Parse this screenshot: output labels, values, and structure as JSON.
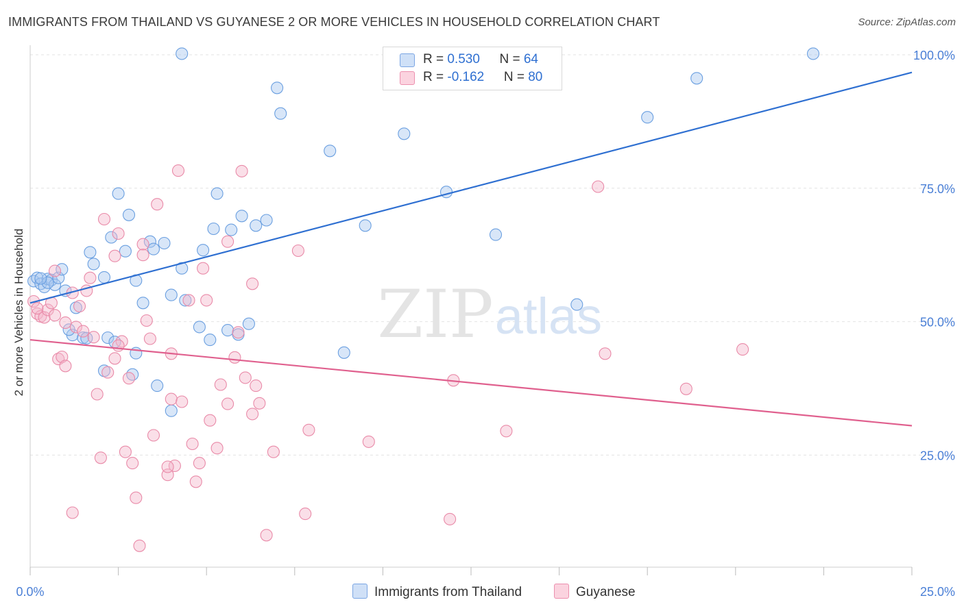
{
  "header": {
    "title": "IMMIGRANTS FROM THAILAND VS GUYANESE 2 OR MORE VEHICLES IN HOUSEHOLD CORRELATION CHART",
    "source": "Source: ZipAtlas.com"
  },
  "stats": [
    {
      "r_label": "R = ",
      "r_value": "0.530",
      "n_label": "N = ",
      "n_value": "64",
      "color": "#a8c8f0"
    },
    {
      "r_label": "R = ",
      "r_value": "-0.162",
      "n_label": "N = ",
      "n_value": "80",
      "color": "#f5b8cc"
    }
  ],
  "legend": [
    {
      "label": "Immigrants from Thailand",
      "color": "#a8c8f0"
    },
    {
      "label": "Guyanese",
      "color": "#f5b8cc"
    }
  ],
  "watermark": {
    "zip": "ZIP",
    "atlas": "atlas"
  },
  "chart_data": {
    "type": "scatter",
    "xlabel": "",
    "ylabel": "2 or more Vehicles in Household",
    "xlim": [
      0,
      25
    ],
    "ylim": [
      4,
      100
    ],
    "x_tick_labels": [
      "0.0%",
      "25.0%"
    ],
    "y_tick_labels": [
      "100.0%",
      "75.0%",
      "50.0%",
      "25.0%"
    ],
    "y_ticks": [
      100,
      75,
      50,
      25
    ],
    "grid": true,
    "series": [
      {
        "name": "Immigrants from Thailand",
        "color": "#6a9fe0",
        "fill": "#a8c8f0",
        "trend": {
          "x": [
            0,
            25
          ],
          "y": [
            53.5,
            96.7
          ],
          "color": "#2e6fd1"
        },
        "points": [
          [
            0.1,
            57.6
          ],
          [
            0.2,
            58.2
          ],
          [
            0.3,
            57.1
          ],
          [
            0.4,
            56.5
          ],
          [
            0.5,
            58.0
          ],
          [
            0.6,
            57.8
          ],
          [
            0.7,
            56.9
          ],
          [
            0.8,
            58.2
          ],
          [
            0.9,
            59.8
          ],
          [
            1.0,
            55.8
          ],
          [
            1.3,
            52.6
          ],
          [
            1.7,
            63.0
          ],
          [
            1.8,
            60.8
          ],
          [
            2.1,
            58.3
          ],
          [
            2.3,
            65.8
          ],
          [
            2.5,
            74.0
          ],
          [
            2.7,
            63.2
          ],
          [
            2.8,
            70.0
          ],
          [
            3.0,
            57.7
          ],
          [
            3.2,
            53.5
          ],
          [
            3.4,
            65.0
          ],
          [
            3.5,
            63.6
          ],
          [
            3.8,
            64.7
          ],
          [
            4.0,
            55.0
          ],
          [
            4.3,
            60.0
          ],
          [
            4.4,
            54.0
          ],
          [
            4.9,
            63.4
          ],
          [
            5.2,
            67.4
          ],
          [
            5.3,
            74.0
          ],
          [
            5.7,
            67.2
          ],
          [
            6.0,
            69.8
          ],
          [
            6.4,
            68.0
          ],
          [
            6.7,
            69.0
          ],
          [
            7.0,
            93.8
          ],
          [
            7.1,
            89.0
          ],
          [
            8.5,
            82.0
          ],
          [
            9.5,
            68.0
          ],
          [
            10.6,
            85.2
          ],
          [
            11.8,
            74.3
          ],
          [
            13.2,
            66.3
          ],
          [
            15.5,
            53.2
          ],
          [
            17.5,
            88.3
          ],
          [
            18.9,
            95.6
          ],
          [
            22.2,
            100.2
          ],
          [
            4.3,
            100.2
          ],
          [
            1.2,
            47.5
          ],
          [
            1.5,
            47.0
          ],
          [
            1.6,
            46.9
          ],
          [
            2.2,
            47.0
          ],
          [
            2.4,
            46.2
          ],
          [
            3.0,
            44.1
          ],
          [
            3.6,
            38.0
          ],
          [
            4.0,
            33.3
          ],
          [
            4.8,
            49.0
          ],
          [
            5.1,
            46.6
          ],
          [
            5.9,
            47.6
          ],
          [
            6.2,
            49.6
          ],
          [
            8.9,
            44.2
          ],
          [
            2.1,
            40.8
          ],
          [
            2.9,
            40.1
          ],
          [
            1.1,
            48.5
          ],
          [
            0.5,
            57.3
          ],
          [
            5.6,
            48.4
          ],
          [
            0.3,
            58.1
          ]
        ]
      },
      {
        "name": "Guyanese",
        "color": "#e98aa8",
        "fill": "#f5b8cc",
        "trend": {
          "x": [
            0,
            25
          ],
          "y": [
            46.6,
            30.5
          ],
          "color": "#e0608e"
        },
        "points": [
          [
            0.1,
            53.8
          ],
          [
            0.2,
            51.5
          ],
          [
            0.3,
            51.0
          ],
          [
            0.4,
            50.8
          ],
          [
            0.5,
            52.2
          ],
          [
            0.6,
            53.5
          ],
          [
            0.7,
            51.2
          ],
          [
            0.8,
            43.0
          ],
          [
            0.9,
            43.4
          ],
          [
            1.0,
            41.7
          ],
          [
            1.2,
            55.4
          ],
          [
            1.3,
            49.0
          ],
          [
            1.4,
            52.9
          ],
          [
            1.6,
            55.8
          ],
          [
            1.7,
            58.2
          ],
          [
            1.9,
            36.4
          ],
          [
            2.0,
            24.5
          ],
          [
            2.1,
            69.2
          ],
          [
            2.2,
            40.5
          ],
          [
            2.4,
            62.3
          ],
          [
            2.5,
            66.5
          ],
          [
            2.6,
            46.3
          ],
          [
            2.7,
            25.6
          ],
          [
            2.8,
            39.4
          ],
          [
            2.9,
            23.5
          ],
          [
            3.0,
            17.0
          ],
          [
            3.1,
            8.0
          ],
          [
            3.2,
            64.5
          ],
          [
            3.3,
            50.2
          ],
          [
            3.4,
            46.8
          ],
          [
            3.5,
            28.7
          ],
          [
            3.6,
            72.0
          ],
          [
            3.9,
            21.3
          ],
          [
            4.0,
            35.5
          ],
          [
            4.1,
            23.0
          ],
          [
            4.2,
            78.3
          ],
          [
            4.3,
            35.0
          ],
          [
            4.5,
            54.0
          ],
          [
            4.6,
            27.1
          ],
          [
            4.7,
            20.0
          ],
          [
            4.8,
            23.5
          ],
          [
            5.0,
            54.0
          ],
          [
            5.1,
            31.5
          ],
          [
            5.3,
            26.3
          ],
          [
            5.4,
            38.2
          ],
          [
            5.6,
            34.6
          ],
          [
            5.8,
            43.3
          ],
          [
            6.0,
            78.2
          ],
          [
            6.1,
            39.5
          ],
          [
            6.3,
            32.7
          ],
          [
            6.5,
            34.7
          ],
          [
            6.7,
            10.0
          ],
          [
            6.9,
            25.6
          ],
          [
            7.6,
            63.3
          ],
          [
            7.8,
            14.0
          ],
          [
            7.9,
            29.7
          ],
          [
            9.6,
            27.5
          ],
          [
            11.9,
            13.0
          ],
          [
            12.0,
            39.0
          ],
          [
            13.5,
            29.5
          ],
          [
            16.1,
            75.3
          ],
          [
            16.3,
            44.0
          ],
          [
            18.6,
            37.4
          ],
          [
            20.2,
            44.8
          ],
          [
            0.7,
            59.5
          ],
          [
            1.0,
            49.8
          ],
          [
            1.8,
            47.1
          ],
          [
            2.4,
            43.1
          ],
          [
            3.2,
            62.5
          ],
          [
            4.0,
            44.0
          ],
          [
            0.2,
            52.5
          ],
          [
            4.9,
            60.0
          ],
          [
            5.6,
            65.0
          ],
          [
            5.9,
            48.0
          ],
          [
            6.3,
            57.1
          ],
          [
            1.5,
            48.2
          ],
          [
            1.2,
            14.2
          ],
          [
            3.9,
            22.8
          ],
          [
            2.5,
            45.5
          ],
          [
            6.4,
            38.0
          ]
        ]
      }
    ]
  }
}
